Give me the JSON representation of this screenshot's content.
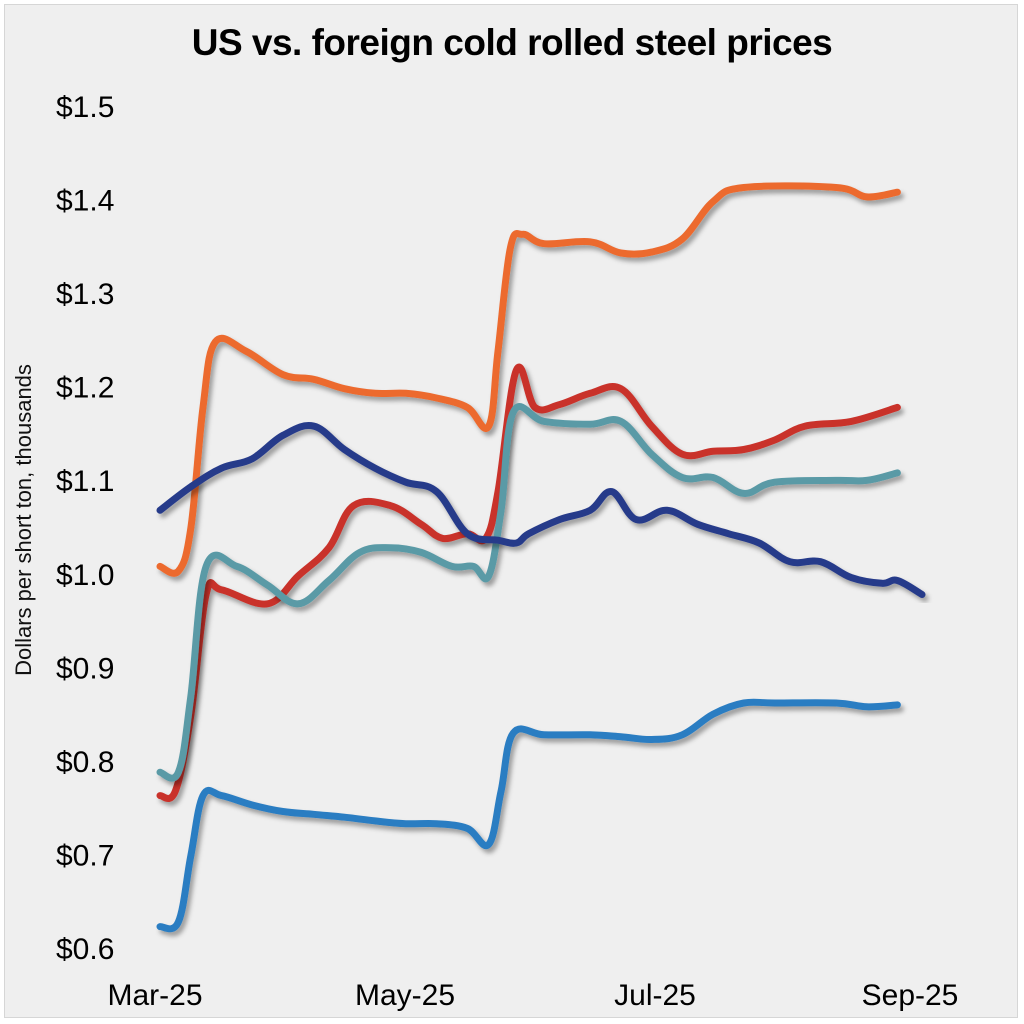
{
  "chart_data": {
    "type": "line",
    "title": "US vs. foreign cold rolled steel prices",
    "ylabel": "Dollars per short ton, thousands",
    "xlabel": "",
    "x_ticks": [
      "Mar-25",
      "May-25",
      "Jul-25",
      "Sep-25"
    ],
    "y_ticks": [
      "$0.6",
      "$0.7",
      "$0.8",
      "$0.9",
      "$1.0",
      "$1.1",
      "$1.2",
      "$1.3",
      "$1.4",
      "$1.5"
    ],
    "ylim": [
      0.6,
      1.5
    ],
    "xlim": [
      0,
      28
    ],
    "grid": false,
    "series": [
      {
        "color": "#ec6a2f",
        "points": [
          [
            0,
            1.01
          ],
          [
            0.6,
            1.005
          ],
          [
            1.0,
            1.05
          ],
          [
            1.4,
            1.18
          ],
          [
            1.8,
            1.25
          ],
          [
            2.8,
            1.24
          ],
          [
            4,
            1.215
          ],
          [
            5,
            1.21
          ],
          [
            6,
            1.2
          ],
          [
            7,
            1.195
          ],
          [
            8,
            1.195
          ],
          [
            9,
            1.19
          ],
          [
            10,
            1.18
          ],
          [
            10.7,
            1.16
          ],
          [
            11,
            1.24
          ],
          [
            11.4,
            1.35
          ],
          [
            11.8,
            1.365
          ],
          [
            12.5,
            1.355
          ],
          [
            14,
            1.357
          ],
          [
            15,
            1.345
          ],
          [
            16,
            1.346
          ],
          [
            17,
            1.36
          ],
          [
            18,
            1.4
          ],
          [
            19,
            1.415
          ],
          [
            22,
            1.415
          ],
          [
            23,
            1.405
          ],
          [
            24,
            1.41
          ]
        ]
      },
      {
        "color": "#c9312b",
        "points": [
          [
            0,
            0.765
          ],
          [
            0.5,
            0.77
          ],
          [
            1.0,
            0.85
          ],
          [
            1.5,
            0.98
          ],
          [
            2,
            0.985
          ],
          [
            3.5,
            0.97
          ],
          [
            4.5,
            1.0
          ],
          [
            5.5,
            1.03
          ],
          [
            6.3,
            1.075
          ],
          [
            7.5,
            1.075
          ],
          [
            8.5,
            1.055
          ],
          [
            9.2,
            1.04
          ],
          [
            10,
            1.045
          ],
          [
            10.6,
            1.04
          ],
          [
            11,
            1.09
          ],
          [
            11.6,
            1.22
          ],
          [
            12.2,
            1.18
          ],
          [
            13,
            1.183
          ],
          [
            14,
            1.195
          ],
          [
            15,
            1.2
          ],
          [
            16,
            1.16
          ],
          [
            17,
            1.13
          ],
          [
            18,
            1.133
          ],
          [
            19,
            1.135
          ],
          [
            20,
            1.145
          ],
          [
            21,
            1.16
          ],
          [
            22.5,
            1.165
          ],
          [
            24,
            1.18
          ]
        ]
      },
      {
        "color": "#5a9aa6",
        "points": [
          [
            0,
            0.79
          ],
          [
            0.6,
            0.79
          ],
          [
            1.0,
            0.87
          ],
          [
            1.5,
            1.01
          ],
          [
            2.5,
            1.01
          ],
          [
            3.5,
            0.99
          ],
          [
            4.5,
            0.97
          ],
          [
            5.5,
            0.995
          ],
          [
            6.5,
            1.025
          ],
          [
            7.5,
            1.03
          ],
          [
            8.5,
            1.025
          ],
          [
            9.5,
            1.01
          ],
          [
            10.2,
            1.01
          ],
          [
            10.7,
            1.0
          ],
          [
            11.1,
            1.07
          ],
          [
            11.5,
            1.175
          ],
          [
            12.5,
            1.165
          ],
          [
            14,
            1.162
          ],
          [
            15,
            1.165
          ],
          [
            16,
            1.13
          ],
          [
            17,
            1.105
          ],
          [
            18,
            1.105
          ],
          [
            19,
            1.088
          ],
          [
            20,
            1.1
          ],
          [
            22,
            1.102
          ],
          [
            23,
            1.102
          ],
          [
            24,
            1.11
          ]
        ]
      },
      {
        "color": "#263a8a",
        "points": [
          [
            0,
            1.07
          ],
          [
            1,
            1.095
          ],
          [
            2,
            1.115
          ],
          [
            3,
            1.125
          ],
          [
            4,
            1.15
          ],
          [
            5,
            1.16
          ],
          [
            6,
            1.135
          ],
          [
            7,
            1.115
          ],
          [
            8,
            1.1
          ],
          [
            9,
            1.09
          ],
          [
            10,
            1.045
          ],
          [
            11,
            1.038
          ],
          [
            11.6,
            1.035
          ],
          [
            12,
            1.045
          ],
          [
            13,
            1.06
          ],
          [
            14,
            1.07
          ],
          [
            14.7,
            1.09
          ],
          [
            15.5,
            1.06
          ],
          [
            16.5,
            1.07
          ],
          [
            17.5,
            1.055
          ],
          [
            18.5,
            1.045
          ],
          [
            19.5,
            1.035
          ],
          [
            20.5,
            1.015
          ],
          [
            21.5,
            1.015
          ],
          [
            22.5,
            0.998
          ],
          [
            23.5,
            0.992
          ],
          [
            24,
            0.995
          ],
          [
            24.8,
            0.98
          ]
        ]
      },
      {
        "color": "#2b7dc2",
        "points": [
          [
            0,
            0.625
          ],
          [
            0.6,
            0.63
          ],
          [
            1.0,
            0.7
          ],
          [
            1.4,
            0.765
          ],
          [
            2,
            0.765
          ],
          [
            3,
            0.755
          ],
          [
            4,
            0.748
          ],
          [
            5,
            0.745
          ],
          [
            6,
            0.742
          ],
          [
            7,
            0.738
          ],
          [
            8,
            0.735
          ],
          [
            9,
            0.735
          ],
          [
            10,
            0.73
          ],
          [
            10.7,
            0.713
          ],
          [
            11.1,
            0.77
          ],
          [
            11.5,
            0.832
          ],
          [
            12.5,
            0.83
          ],
          [
            14,
            0.83
          ],
          [
            15,
            0.828
          ],
          [
            16,
            0.825
          ],
          [
            17,
            0.83
          ],
          [
            18,
            0.852
          ],
          [
            19,
            0.864
          ],
          [
            20,
            0.864
          ],
          [
            22,
            0.864
          ],
          [
            23,
            0.86
          ],
          [
            24,
            0.862
          ]
        ]
      }
    ]
  }
}
